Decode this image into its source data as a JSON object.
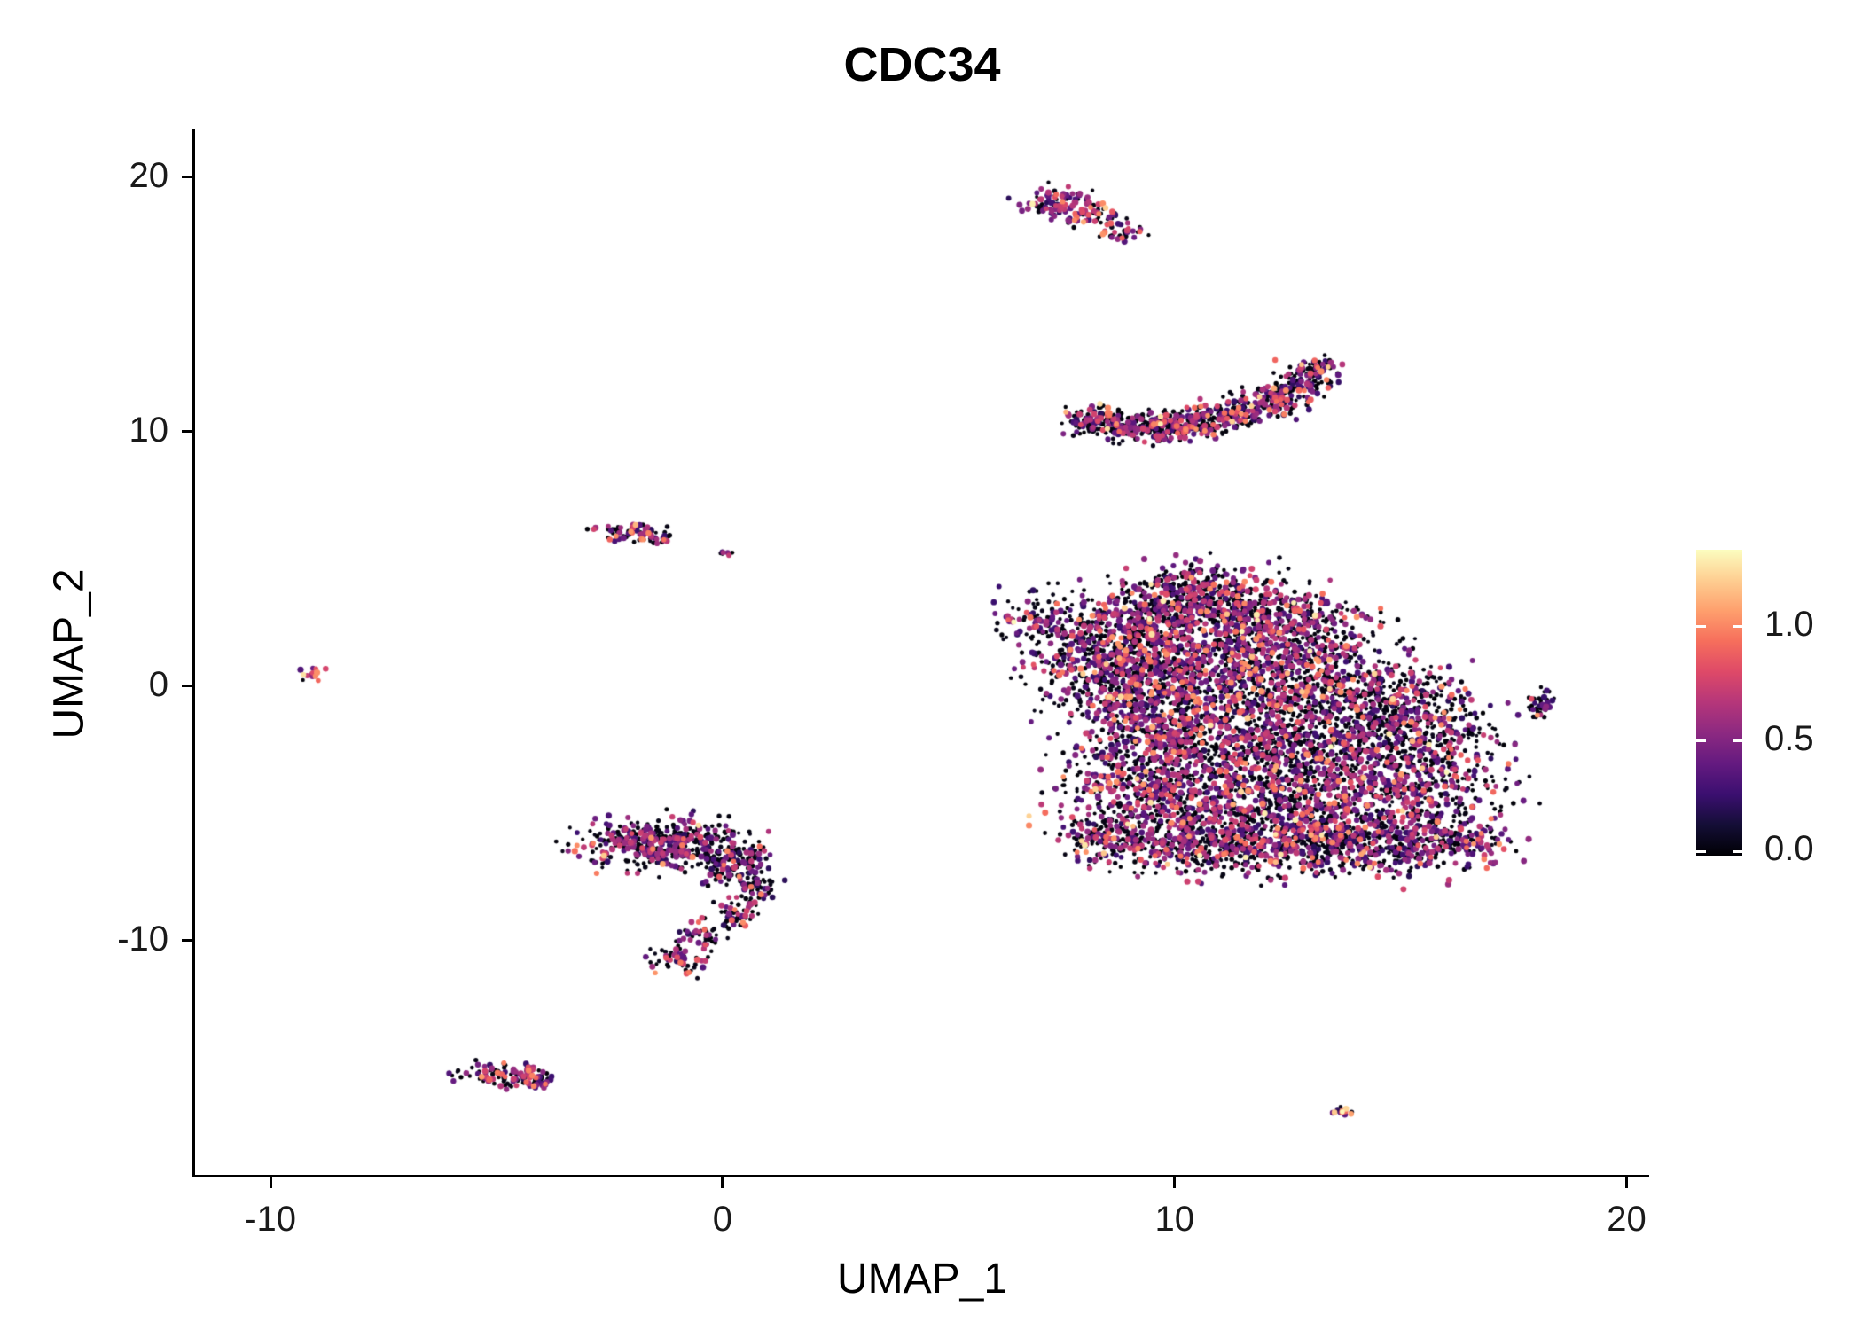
{
  "title": "CDC34",
  "axes": {
    "x": {
      "label": "UMAP_1",
      "ticks": [
        -10,
        0,
        10,
        20
      ]
    },
    "y": {
      "label": "UMAP_2",
      "ticks": [
        20,
        10,
        0,
        -10
      ]
    }
  },
  "colorbar": {
    "tick_labels": [
      "1.0",
      "0.5",
      "0.0"
    ],
    "tick_values": [
      1.0,
      0.5,
      0.0
    ],
    "vmin": 0.0,
    "vmax": 1.337
  },
  "chart_data": {
    "type": "scatter",
    "title": "CDC34",
    "xlabel": "UMAP_1",
    "ylabel": "UMAP_2",
    "xlim": [
      -11.67,
      20.5
    ],
    "ylim": [
      -19.2,
      21.9
    ],
    "grid": false,
    "legend_position": "right",
    "color_scale": {
      "name": "magma",
      "domain": [
        0.0,
        1.337
      ],
      "palette": [
        [
          0.0,
          [
            0,
            0,
            4
          ]
        ],
        [
          0.1,
          [
            20,
            14,
            54
          ]
        ],
        [
          0.2,
          [
            59,
            15,
            112
          ]
        ],
        [
          0.3,
          [
            100,
            26,
            128
          ]
        ],
        [
          0.4,
          [
            140,
            41,
            129
          ]
        ],
        [
          0.5,
          [
            181,
            54,
            122
          ]
        ],
        [
          0.6,
          [
            222,
            73,
            104
          ]
        ],
        [
          0.7,
          [
            246,
            110,
            92
          ]
        ],
        [
          0.8,
          [
            254,
            159,
            109
          ]
        ],
        [
          0.9,
          [
            254,
            206,
            145
          ]
        ],
        [
          1.0,
          [
            252,
            253,
            191
          ]
        ]
      ]
    },
    "value_bins": {
      "zero": [
        0.0,
        0.06
      ],
      "mid": [
        0.2,
        0.75
      ],
      "high": [
        0.75,
        1.05
      ],
      "top": [
        1.05,
        1.33
      ]
    },
    "seed": 42,
    "clusters": [
      {
        "name": "top-small-cluster",
        "expr_weights": [
          0.45,
          0.42,
          0.11,
          0.02
        ],
        "components": [
          [
            7.45,
            19.0,
            0.4,
            0.3,
            90
          ],
          [
            8.1,
            18.5,
            0.3,
            0.22,
            50
          ],
          [
            8.8,
            17.85,
            0.28,
            0.18,
            35
          ]
        ]
      },
      {
        "name": "crescent-cluster",
        "expr_weights": [
          0.55,
          0.36,
          0.08,
          0.01
        ],
        "components": [
          [
            8.35,
            10.35,
            0.45,
            0.3,
            130
          ],
          [
            9.3,
            10.15,
            0.5,
            0.28,
            170
          ],
          [
            10.3,
            10.3,
            0.5,
            0.28,
            170
          ],
          [
            11.3,
            10.7,
            0.45,
            0.3,
            150
          ],
          [
            12.2,
            11.3,
            0.4,
            0.3,
            120
          ],
          [
            12.85,
            12.0,
            0.3,
            0.3,
            90
          ],
          [
            13.2,
            12.5,
            0.2,
            0.2,
            40
          ]
        ]
      },
      {
        "name": "main-blob-cluster",
        "expr_weights": [
          0.56,
          0.36,
          0.07,
          0.01
        ],
        "components": [
          [
            6.9,
            2.6,
            0.45,
            0.5,
            70
          ],
          [
            8.3,
            1.8,
            0.8,
            0.8,
            300
          ],
          [
            9.8,
            2.8,
            0.9,
            0.8,
            350
          ],
          [
            11.3,
            2.9,
            1.1,
            0.7,
            350
          ],
          [
            12.8,
            2.2,
            0.9,
            0.7,
            280
          ],
          [
            10.4,
            3.9,
            0.7,
            0.5,
            150
          ],
          [
            8.9,
            0.3,
            0.9,
            0.9,
            400
          ],
          [
            10.8,
            0.8,
            1.2,
            1.0,
            450
          ],
          [
            12.8,
            0.3,
            1.1,
            0.9,
            400
          ],
          [
            14.3,
            -0.6,
            0.9,
            0.9,
            320
          ],
          [
            15.6,
            -1.8,
            0.8,
            1.0,
            280
          ],
          [
            9.7,
            -1.8,
            1.0,
            1.0,
            420
          ],
          [
            11.8,
            -1.8,
            1.3,
            1.0,
            480
          ],
          [
            13.6,
            -2.8,
            1.1,
            1.0,
            400
          ],
          [
            15.6,
            -4.3,
            0.9,
            0.9,
            300
          ],
          [
            9.3,
            -4.0,
            0.9,
            1.0,
            350
          ],
          [
            11.2,
            -4.3,
            1.2,
            1.0,
            430
          ],
          [
            13.2,
            -5.0,
            1.1,
            0.9,
            380
          ],
          [
            10.2,
            -6.2,
            0.9,
            0.6,
            280
          ],
          [
            12.2,
            -6.4,
            1.1,
            0.6,
            300
          ],
          [
            14.3,
            -6.3,
            1.0,
            0.6,
            280
          ],
          [
            16.2,
            -6.0,
            0.6,
            0.5,
            150
          ],
          [
            8.6,
            -5.9,
            0.6,
            0.5,
            150
          ]
        ]
      },
      {
        "name": "left-small-cluster",
        "expr_weights": [
          0.45,
          0.45,
          0.09,
          0.01
        ],
        "components": [
          [
            -2.05,
            6.05,
            0.42,
            0.17,
            70
          ],
          [
            -1.45,
            5.8,
            0.18,
            0.1,
            18
          ],
          [
            0.05,
            5.2,
            0.1,
            0.07,
            8
          ]
        ]
      },
      {
        "name": "far-left-tiny-cluster",
        "expr_weights": [
          0.15,
          0.45,
          0.3,
          0.1
        ],
        "components": [
          [
            -9.1,
            0.45,
            0.17,
            0.14,
            14
          ]
        ]
      },
      {
        "name": "hook-cluster",
        "expr_weights": [
          0.58,
          0.35,
          0.06,
          0.01
        ],
        "components": [
          [
            -1.9,
            -6.1,
            0.7,
            0.45,
            240
          ],
          [
            -0.7,
            -6.3,
            0.7,
            0.5,
            240
          ],
          [
            0.2,
            -6.9,
            0.45,
            0.45,
            130
          ],
          [
            0.7,
            -7.9,
            0.25,
            0.35,
            55
          ],
          [
            0.3,
            -8.9,
            0.3,
            0.3,
            50
          ],
          [
            -0.4,
            -9.9,
            0.25,
            0.3,
            45
          ],
          [
            -1.0,
            -10.8,
            0.3,
            0.25,
            55
          ]
        ]
      },
      {
        "name": "bottom-left-cluster",
        "expr_weights": [
          0.45,
          0.45,
          0.09,
          0.01
        ],
        "components": [
          [
            -4.75,
            -15.25,
            0.5,
            0.22,
            100
          ],
          [
            -4.15,
            -15.55,
            0.28,
            0.15,
            40
          ]
        ]
      },
      {
        "name": "right-small-cluster",
        "expr_weights": [
          0.55,
          0.38,
          0.06,
          0.01
        ],
        "components": [
          [
            18.1,
            -0.75,
            0.16,
            0.3,
            40
          ]
        ]
      },
      {
        "name": "bottom-right-tiny-cluster",
        "expr_weights": [
          0.05,
          0.2,
          0.45,
          0.3
        ],
        "components": [
          [
            13.75,
            -16.7,
            0.2,
            0.1,
            14
          ]
        ]
      }
    ]
  }
}
